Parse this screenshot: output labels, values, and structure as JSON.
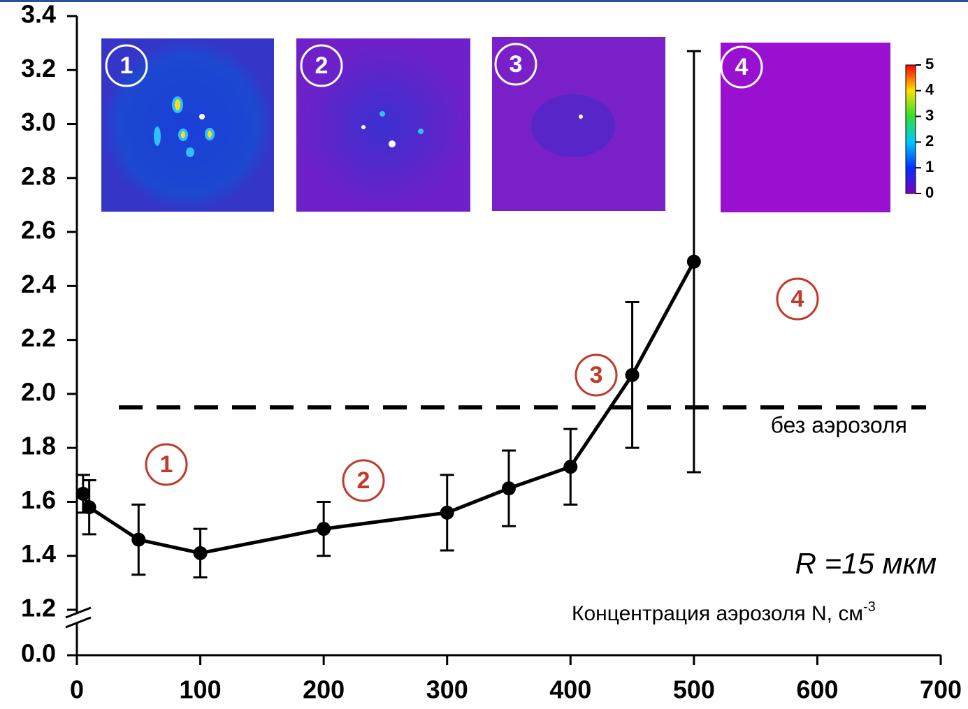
{
  "chart_data": {
    "type": "line",
    "x": [
      5,
      10,
      50,
      100,
      200,
      300,
      350,
      400,
      450,
      500
    ],
    "series": [
      {
        "color": "#000000",
        "values": [
          1.63,
          1.58,
          1.46,
          1.41,
          1.5,
          1.56,
          1.65,
          1.73,
          2.07,
          2.49
        ],
        "errors": [
          0.07,
          0.1,
          0.13,
          0.09,
          0.1,
          0.14,
          0.14,
          0.14,
          0.27,
          0.78
        ]
      }
    ],
    "xlim": [
      0,
      700
    ],
    "xticks": [
      0,
      100,
      200,
      300,
      400,
      500,
      600,
      700
    ],
    "ylim": [
      0,
      3.4
    ],
    "y_break": [
      {
        "value": 0,
        "label": "0.0"
      },
      1.2
    ],
    "yticks": [
      {
        "value": 0,
        "label": "0.0"
      },
      1.2,
      1.4,
      1.6,
      1.8,
      {
        "value": 2,
        "label": "2.0"
      },
      2.2,
      2.4,
      2.6,
      2.8,
      {
        "value": 3,
        "label": "3.0"
      },
      3.2,
      3.4
    ],
    "reference_line": {
      "value": 1.95,
      "label": "без аэрозоля"
    },
    "annotation": "R =15 мкм",
    "xlabel": "Концентрация аэрозоля N, см",
    "xlabel_superscript": "-3",
    "regions": [
      "1",
      "2",
      "3",
      "4"
    ],
    "insets": [
      "1",
      "2",
      "3",
      "4"
    ],
    "colorbar_ticks": [
      0,
      1,
      2,
      3,
      4,
      5
    ]
  }
}
